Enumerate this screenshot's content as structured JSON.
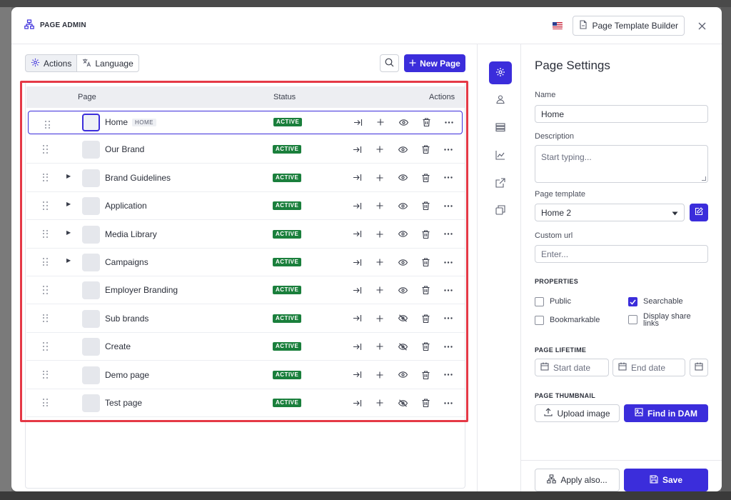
{
  "header": {
    "title": "PAGE ADMIN",
    "template_builder_label": "Page Template Builder"
  },
  "toolbar": {
    "actions_label": "Actions",
    "language_label": "Language",
    "new_page_label": "New Page"
  },
  "table": {
    "columns": [
      "Page",
      "Status",
      "Actions"
    ],
    "home_badge": "HOME",
    "rows": [
      {
        "name": "Home",
        "status": "ACTIVE",
        "expandable": false,
        "visible": true,
        "selected": true,
        "is_home": true
      },
      {
        "name": "Our Brand",
        "status": "ACTIVE",
        "expandable": false,
        "visible": true
      },
      {
        "name": "Brand Guidelines",
        "status": "ACTIVE",
        "expandable": true,
        "visible": true
      },
      {
        "name": "Application",
        "status": "ACTIVE",
        "expandable": true,
        "visible": true
      },
      {
        "name": "Media Library",
        "status": "ACTIVE",
        "expandable": true,
        "visible": true
      },
      {
        "name": "Campaigns",
        "status": "ACTIVE",
        "expandable": true,
        "visible": true
      },
      {
        "name": "Employer Branding",
        "status": "ACTIVE",
        "expandable": false,
        "visible": true
      },
      {
        "name": "Sub brands",
        "status": "ACTIVE",
        "expandable": false,
        "visible": false
      },
      {
        "name": "Create",
        "status": "ACTIVE",
        "expandable": false,
        "visible": false
      },
      {
        "name": "Demo page",
        "status": "ACTIVE",
        "expandable": false,
        "visible": true
      },
      {
        "name": "Test page",
        "status": "ACTIVE",
        "expandable": false,
        "visible": false
      }
    ]
  },
  "settings": {
    "title": "Page Settings",
    "name_label": "Name",
    "name_value": "Home",
    "description_label": "Description",
    "description_placeholder": "Start typing...",
    "template_label": "Page template",
    "template_value": "Home 2",
    "custom_url_label": "Custom url",
    "custom_url_placeholder": "Enter...",
    "properties_heading": "PROPERTIES",
    "public_label": "Public",
    "searchable_label": "Searchable",
    "bookmarkable_label": "Bookmarkable",
    "share_links_label": "Display share links",
    "public_checked": false,
    "searchable_checked": true,
    "bookmarkable_checked": false,
    "share_links_checked": false,
    "lifetime_heading": "PAGE LIFETIME",
    "start_date_placeholder": "Start date",
    "end_date_placeholder": "End date",
    "thumbnail_heading": "PAGE THUMBNAIL",
    "upload_label": "Upload image",
    "find_dam_label": "Find in DAM",
    "apply_label": "Apply also...",
    "save_label": "Save"
  },
  "colors": {
    "accent": "#3b2ddb",
    "status_active": "#1a7f3c",
    "highlight": "#e53946"
  }
}
